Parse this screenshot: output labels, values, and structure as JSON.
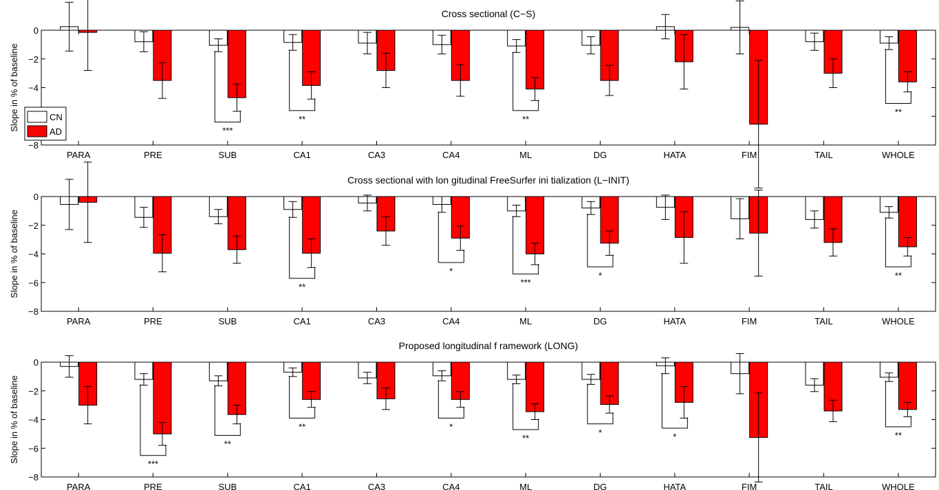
{
  "chart_data": [
    {
      "type": "bar",
      "title": "Cross sectional (C−S)",
      "ylabel": "Slope in % of baseline",
      "ylim": [
        -8,
        0
      ],
      "yticks": [
        "0",
        "−2",
        "−4",
        "−6",
        "−8"
      ],
      "categories": [
        "PARA",
        "PRE",
        "SUB",
        "CA1",
        "CA3",
        "CA4",
        "ML",
        "DG",
        "HATA",
        "FIM",
        "TAIL",
        "WHOLE"
      ],
      "series": [
        {
          "name": "CN",
          "color": "#ffffff",
          "values": [
            0.25,
            -0.8,
            -1.05,
            -0.85,
            -0.9,
            -1.0,
            -1.1,
            -1.05,
            0.25,
            0.2,
            -0.8,
            -0.9
          ],
          "errors": [
            1.7,
            0.7,
            0.45,
            0.55,
            0.75,
            0.65,
            0.45,
            0.6,
            0.85,
            1.85,
            0.6,
            0.45
          ]
        },
        {
          "name": "AD",
          "color": "#ff0000",
          "values": [
            -0.15,
            -3.5,
            -4.7,
            -3.85,
            -2.8,
            -3.5,
            -4.1,
            -3.5,
            -2.2,
            -6.55,
            -3.0,
            -3.6
          ],
          "errors": [
            2.65,
            1.25,
            0.95,
            0.95,
            1.2,
            1.1,
            0.8,
            1.05,
            1.9,
            4.45,
            1.0,
            0.7
          ]
        }
      ],
      "significance": [
        {
          "category": "SUB",
          "label": "***",
          "level": -6.4
        },
        {
          "category": "CA1",
          "label": "**",
          "level": -5.6
        },
        {
          "category": "ML",
          "label": "**",
          "level": -5.6
        },
        {
          "category": "WHOLE",
          "label": "**",
          "level": -5.1
        }
      ],
      "legend": {
        "entries": [
          "CN",
          "AD"
        ],
        "placement": "left"
      }
    },
    {
      "type": "bar",
      "title": "Cross sectional with lon   gitudinal FreeSurfer ini  tialization (L−INIT)",
      "ylabel": "Slope in % of baseline",
      "ylim": [
        -8,
        0
      ],
      "yticks": [
        "0",
        "−2",
        "−4",
        "−6",
        "−8"
      ],
      "categories": [
        "PARA",
        "PRE",
        "SUB",
        "CA1",
        "CA3",
        "CA4",
        "ML",
        "DG",
        "HATA",
        "FIM",
        "TAIL",
        "WHOLE"
      ],
      "series": [
        {
          "name": "CN",
          "color": "#ffffff",
          "values": [
            -0.55,
            -1.45,
            -1.4,
            -0.9,
            -0.45,
            -0.55,
            -1.0,
            -0.8,
            -0.75,
            -1.55,
            -1.6,
            -1.1
          ],
          "errors": [
            1.75,
            0.7,
            0.5,
            0.55,
            0.55,
            0.55,
            0.4,
            0.45,
            0.85,
            1.4,
            0.6,
            0.4
          ]
        },
        {
          "name": "AD",
          "color": "#ff0000",
          "values": [
            -0.4,
            -3.95,
            -3.7,
            -3.95,
            -2.4,
            -2.9,
            -4.0,
            -3.25,
            -2.85,
            -2.55,
            -3.2,
            -3.5
          ],
          "errors": [
            2.8,
            1.3,
            0.95,
            1.0,
            1.0,
            0.85,
            0.75,
            0.85,
            1.8,
            3.0,
            0.95,
            0.65
          ]
        }
      ],
      "significance": [
        {
          "category": "CA1",
          "label": "**",
          "level": -5.7
        },
        {
          "category": "CA4",
          "label": "*",
          "level": -4.6
        },
        {
          "category": "ML",
          "label": "***",
          "level": -5.4
        },
        {
          "category": "DG",
          "label": "*",
          "level": -4.9
        },
        {
          "category": "WHOLE",
          "label": "**",
          "level": -4.9
        }
      ]
    },
    {
      "type": "bar",
      "title": "Proposed longitudinal f  ramework (LONG)",
      "ylabel": "Slope in % of baseline",
      "ylim": [
        -8,
        0
      ],
      "yticks": [
        "0",
        "−2",
        "−4",
        "−6",
        "−8"
      ],
      "categories": [
        "PARA",
        "PRE",
        "SUB",
        "CA1",
        "CA3",
        "CA4",
        "ML",
        "DG",
        "HATA",
        "FIM",
        "TAIL",
        "WHOLE"
      ],
      "series": [
        {
          "name": "CN",
          "color": "#ffffff",
          "values": [
            -0.3,
            -1.2,
            -1.3,
            -0.7,
            -1.1,
            -0.95,
            -1.2,
            -1.2,
            -0.25,
            -0.8,
            -1.6,
            -1.05
          ],
          "errors": [
            0.75,
            0.4,
            0.35,
            0.3,
            0.4,
            0.35,
            0.3,
            0.35,
            0.55,
            1.4,
            0.45,
            0.3
          ]
        },
        {
          "name": "AD",
          "color": "#ff0000",
          "values": [
            -3.0,
            -5.0,
            -3.65,
            -2.6,
            -2.55,
            -2.6,
            -3.45,
            -2.95,
            -2.8,
            -5.25,
            -3.4,
            -3.3
          ],
          "errors": [
            1.3,
            0.8,
            0.65,
            0.55,
            0.75,
            0.55,
            0.55,
            0.6,
            1.1,
            3.1,
            0.75,
            0.5
          ]
        }
      ],
      "significance": [
        {
          "category": "PRE",
          "label": "***",
          "level": -6.5
        },
        {
          "category": "SUB",
          "label": "**",
          "level": -5.1
        },
        {
          "category": "CA1",
          "label": "**",
          "level": -3.9
        },
        {
          "category": "CA4",
          "label": "*",
          "level": -3.9
        },
        {
          "category": "ML",
          "label": "**",
          "level": -4.7
        },
        {
          "category": "DG",
          "label": "*",
          "level": -4.3
        },
        {
          "category": "HATA",
          "label": "*",
          "level": -4.6
        },
        {
          "category": "WHOLE",
          "label": "**",
          "level": -4.5
        }
      ]
    }
  ]
}
